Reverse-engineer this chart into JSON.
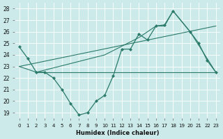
{
  "xlabel": "Humidex (Indice chaleur)",
  "xlim": [
    -0.5,
    23.5
  ],
  "ylim": [
    18.5,
    28.5
  ],
  "yticks": [
    19,
    20,
    21,
    22,
    23,
    24,
    25,
    26,
    27,
    28
  ],
  "xticks": [
    0,
    1,
    2,
    3,
    4,
    5,
    6,
    7,
    8,
    9,
    10,
    11,
    12,
    13,
    14,
    15,
    16,
    17,
    18,
    19,
    20,
    21,
    22,
    23
  ],
  "bg_color": "#cceaea",
  "line_color": "#2a7a6a",
  "line1_x": [
    0,
    1,
    2,
    3,
    4,
    5,
    6,
    7,
    8,
    9,
    10,
    11,
    12,
    13,
    14,
    15,
    16,
    17,
    18,
    20,
    21,
    22,
    23
  ],
  "line1_y": [
    24.7,
    23.7,
    22.5,
    22.5,
    22.0,
    21.0,
    19.8,
    18.8,
    19.0,
    20.0,
    20.5,
    22.2,
    24.5,
    24.5,
    25.8,
    25.3,
    26.5,
    26.6,
    27.8,
    26.0,
    25.0,
    23.5,
    22.5
  ],
  "line2_x": [
    0,
    2,
    10,
    14,
    16,
    17,
    18,
    20,
    23
  ],
  "line2_y": [
    23.0,
    22.5,
    24.0,
    25.5,
    26.5,
    26.5,
    27.8,
    26.0,
    22.5
  ],
  "line3_x": [
    0,
    23
  ],
  "line3_y": [
    23.0,
    26.5
  ],
  "line4_x": [
    2,
    10,
    14,
    19,
    23
  ],
  "line4_y": [
    22.5,
    22.5,
    22.5,
    22.5,
    22.5
  ]
}
